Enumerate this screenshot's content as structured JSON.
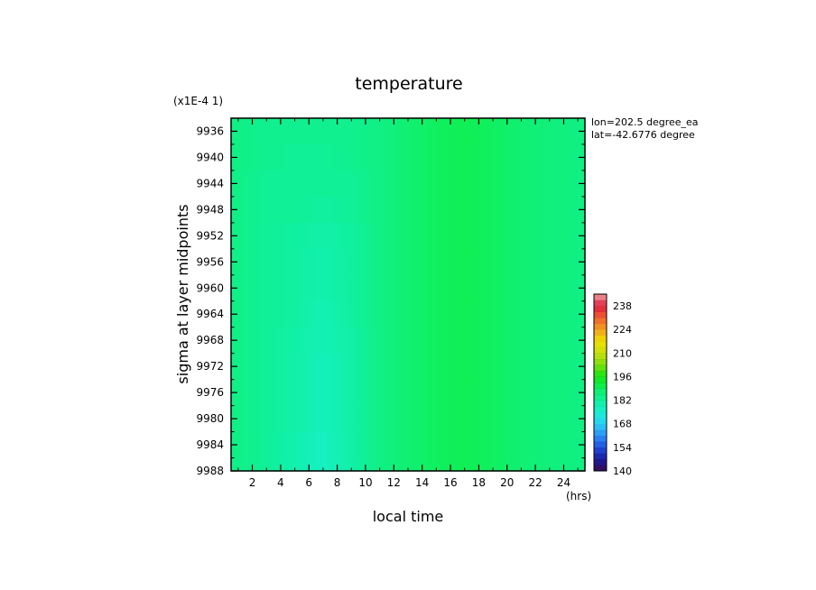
{
  "chart_data": {
    "type": "heatmap",
    "title": "temperature",
    "xlabel": "local time",
    "ylabel": "sigma at layer midpoints",
    "x_unit": "(hrs)",
    "y_scale_note": "(x1E-4 1)",
    "xlim": [
      0.5,
      25.5
    ],
    "ylim": [
      9988,
      9934
    ],
    "x_ticks": [
      2,
      4,
      6,
      8,
      10,
      12,
      14,
      16,
      18,
      20,
      22,
      24
    ],
    "y_ticks": [
      9936,
      9940,
      9944,
      9948,
      9952,
      9956,
      9960,
      9964,
      9968,
      9972,
      9976,
      9980,
      9984,
      9988
    ],
    "annotations": [
      "lon=202.5 degree_ea",
      "lat=-42.6776 degree"
    ],
    "colorbar": {
      "min": 140,
      "max": 245,
      "tick_values": [
        140,
        154,
        168,
        182,
        196,
        210,
        224,
        238
      ],
      "stops": [
        {
          "value": 140,
          "color": "#3a0a50"
        },
        {
          "value": 147,
          "color": "#1a1aa0"
        },
        {
          "value": 154,
          "color": "#1f4fe0"
        },
        {
          "value": 161,
          "color": "#2f8ff5"
        },
        {
          "value": 168,
          "color": "#2ad0f5"
        },
        {
          "value": 175,
          "color": "#18f0d0"
        },
        {
          "value": 182,
          "color": "#10f0a0"
        },
        {
          "value": 189,
          "color": "#10f060"
        },
        {
          "value": 196,
          "color": "#10e810"
        },
        {
          "value": 203,
          "color": "#7ae010"
        },
        {
          "value": 210,
          "color": "#c8e010"
        },
        {
          "value": 217,
          "color": "#f0e000"
        },
        {
          "value": 224,
          "color": "#f0a020"
        },
        {
          "value": 231,
          "color": "#f06030"
        },
        {
          "value": 238,
          "color": "#e02040"
        },
        {
          "value": 245,
          "color": "#f0a0a0"
        }
      ]
    },
    "series": [
      {
        "x": 0.5,
        "values_by_level": [
          185,
          185,
          185,
          185,
          185,
          185,
          185,
          185,
          185,
          185,
          185,
          185,
          185,
          185
        ]
      },
      {
        "x": 3,
        "values_by_level": [
          184,
          184,
          183,
          183,
          183,
          183,
          183,
          183,
          183,
          183,
          183,
          183,
          183,
          183
        ]
      },
      {
        "x": 5,
        "values_by_level": [
          184,
          183,
          183,
          183,
          182,
          182,
          182,
          182,
          181,
          181,
          181,
          181,
          180,
          180
        ]
      },
      {
        "x": 7,
        "values_by_level": [
          184,
          183,
          183,
          182,
          181,
          180,
          180,
          179,
          179,
          178,
          178,
          178,
          177,
          177
        ]
      },
      {
        "x": 9,
        "values_by_level": [
          184,
          184,
          183,
          183,
          182,
          182,
          182,
          182,
          181,
          181,
          181,
          181,
          181,
          181
        ]
      },
      {
        "x": 11,
        "values_by_level": [
          185,
          185,
          185,
          185,
          185,
          185,
          185,
          185,
          185,
          185,
          185,
          185,
          185,
          185
        ]
      },
      {
        "x": 13,
        "values_by_level": [
          187,
          187,
          187,
          187,
          187,
          187,
          187,
          187,
          187,
          187,
          187,
          187,
          187,
          187
        ]
      },
      {
        "x": 15,
        "values_by_level": [
          189,
          189,
          189,
          189,
          189,
          189,
          189,
          189,
          189,
          189,
          189,
          189,
          189,
          189
        ]
      },
      {
        "x": 17,
        "values_by_level": [
          190,
          190,
          190,
          190,
          190,
          190,
          190,
          190,
          190,
          190,
          190,
          190,
          190,
          190
        ]
      },
      {
        "x": 19,
        "values_by_level": [
          189,
          189,
          189,
          189,
          189,
          189,
          189,
          189,
          189,
          189,
          189,
          189,
          189,
          189
        ]
      },
      {
        "x": 21,
        "values_by_level": [
          187,
          187,
          187,
          187,
          187,
          187,
          187,
          187,
          187,
          187,
          187,
          187,
          187,
          187
        ]
      },
      {
        "x": 23,
        "values_by_level": [
          186,
          186,
          186,
          186,
          186,
          186,
          186,
          186,
          186,
          186,
          186,
          186,
          186,
          186
        ]
      },
      {
        "x": 25.5,
        "values_by_level": [
          185,
          185,
          185,
          185,
          185,
          185,
          185,
          185,
          185,
          185,
          185,
          185,
          185,
          185
        ]
      }
    ]
  }
}
